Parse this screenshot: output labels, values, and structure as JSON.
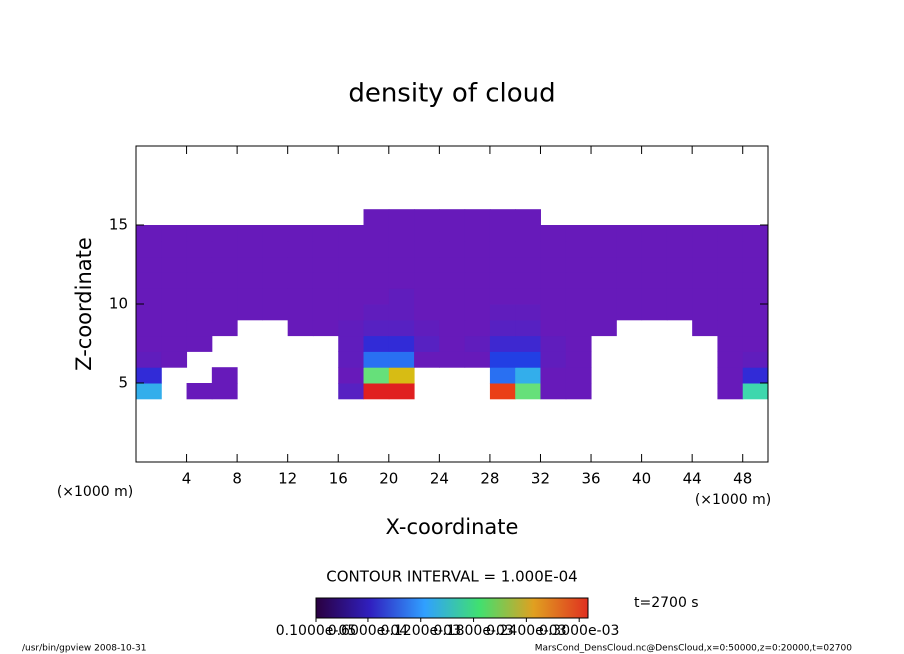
{
  "chart_data": {
    "type": "contour",
    "title": "density of cloud",
    "x_label": "X-coordinate",
    "y_label": "Z-coordinate",
    "x_unit": "(×1000 m)",
    "y_unit": "(×1000 m)",
    "xlim": [
      0,
      50
    ],
    "ylim": [
      0,
      20
    ],
    "xticks": [
      4,
      8,
      12,
      16,
      20,
      24,
      28,
      32,
      36,
      40,
      44,
      48
    ],
    "yticks": [
      5,
      10,
      15
    ],
    "values": [
      [
        null,
        null,
        null,
        null,
        null,
        null,
        null,
        null,
        null,
        null,
        null,
        null,
        null,
        null,
        null,
        null,
        null,
        null,
        null,
        null,
        null,
        null,
        null,
        null,
        null
      ],
      [
        null,
        null,
        null,
        null,
        null,
        null,
        null,
        null,
        null,
        null,
        null,
        null,
        null,
        null,
        null,
        null,
        null,
        null,
        null,
        null,
        null,
        null,
        null,
        null,
        null
      ],
      [
        null,
        null,
        null,
        null,
        null,
        null,
        null,
        null,
        null,
        null,
        null,
        null,
        null,
        null,
        null,
        null,
        null,
        null,
        null,
        null,
        null,
        null,
        null,
        null,
        null
      ],
      [
        null,
        null,
        null,
        null,
        null,
        null,
        null,
        null,
        null,
        null,
        null,
        null,
        null,
        null,
        null,
        null,
        null,
        null,
        null,
        null,
        null,
        null,
        null,
        null,
        null
      ],
      [
        0.00015,
        null,
        3e-05,
        3e-05,
        null,
        null,
        null,
        null,
        5e-05,
        0.00045,
        0.0004,
        null,
        null,
        null,
        0.0003,
        0.0002,
        3e-05,
        3e-05,
        null,
        null,
        null,
        null,
        null,
        3e-05,
        0.00018
      ],
      [
        8e-05,
        null,
        null,
        3e-05,
        null,
        null,
        null,
        null,
        3e-05,
        0.0002,
        0.00025,
        null,
        null,
        null,
        0.00012,
        0.00015,
        3e-05,
        3e-05,
        null,
        null,
        null,
        null,
        null,
        3e-05,
        8e-05
      ],
      [
        4e-05,
        3e-05,
        null,
        null,
        null,
        null,
        null,
        null,
        4e-05,
        0.00012,
        0.00012,
        3e-05,
        3e-05,
        3e-05,
        0.0001,
        0.0001,
        4e-05,
        3e-05,
        null,
        null,
        null,
        null,
        null,
        3e-05,
        4e-05
      ],
      [
        3e-05,
        3e-05,
        3e-05,
        null,
        null,
        null,
        null,
        null,
        4e-05,
        8e-05,
        8e-05,
        5e-05,
        3e-05,
        4e-05,
        7e-05,
        7e-05,
        4e-05,
        3e-05,
        null,
        null,
        null,
        null,
        null,
        3e-05,
        3e-05
      ],
      [
        3e-05,
        3e-05,
        3e-05,
        3e-05,
        null,
        null,
        3e-05,
        3e-05,
        4e-05,
        5e-05,
        5e-05,
        4e-05,
        3e-05,
        3e-05,
        5e-05,
        5e-05,
        3e-05,
        3e-05,
        3e-05,
        null,
        null,
        null,
        3e-05,
        3e-05,
        3e-05
      ],
      [
        3e-05,
        3e-05,
        3e-05,
        3e-05,
        3e-05,
        3e-05,
        3e-05,
        3e-05,
        3e-05,
        4e-05,
        4e-05,
        3e-05,
        3e-05,
        3e-05,
        4e-05,
        4e-05,
        3e-05,
        3e-05,
        3e-05,
        3e-05,
        3e-05,
        3e-05,
        3e-05,
        3e-05,
        3e-05
      ],
      [
        3e-05,
        3e-05,
        3e-05,
        3e-05,
        3e-05,
        3e-05,
        3e-05,
        3e-05,
        3e-05,
        3e-05,
        4e-05,
        3e-05,
        3e-05,
        3e-05,
        3e-05,
        3e-05,
        3e-05,
        3e-05,
        3e-05,
        3e-05,
        3e-05,
        3e-05,
        3e-05,
        3e-05,
        3e-05
      ],
      [
        3e-05,
        3e-05,
        3e-05,
        3e-05,
        3e-05,
        3e-05,
        3e-05,
        3e-05,
        3e-05,
        3e-05,
        3e-05,
        3e-05,
        3e-05,
        3e-05,
        3e-05,
        3e-05,
        3e-05,
        3e-05,
        3e-05,
        3e-05,
        3e-05,
        3e-05,
        3e-05,
        3e-05,
        3e-05
      ],
      [
        3e-05,
        3e-05,
        3e-05,
        3e-05,
        3e-05,
        3e-05,
        3e-05,
        3e-05,
        3e-05,
        3e-05,
        3e-05,
        3e-05,
        3e-05,
        3e-05,
        3e-05,
        3e-05,
        3e-05,
        3e-05,
        3e-05,
        3e-05,
        3e-05,
        3e-05,
        3e-05,
        3e-05,
        3e-05
      ],
      [
        3e-05,
        3e-05,
        3e-05,
        3e-05,
        3e-05,
        3e-05,
        3e-05,
        3e-05,
        3e-05,
        3e-05,
        3e-05,
        3e-05,
        3e-05,
        3e-05,
        3e-05,
        3e-05,
        3e-05,
        3e-05,
        3e-05,
        3e-05,
        3e-05,
        3e-05,
        3e-05,
        3e-05,
        3e-05
      ],
      [
        3e-05,
        3e-05,
        3e-05,
        3e-05,
        3e-05,
        3e-05,
        3e-05,
        3e-05,
        3e-05,
        3e-05,
        3e-05,
        3e-05,
        3e-05,
        3e-05,
        3e-05,
        3e-05,
        3e-05,
        3e-05,
        3e-05,
        3e-05,
        3e-05,
        3e-05,
        3e-05,
        3e-05,
        3e-05
      ],
      [
        null,
        null,
        null,
        null,
        null,
        null,
        null,
        null,
        null,
        3e-05,
        3e-05,
        3e-05,
        3e-05,
        3e-05,
        3e-05,
        3e-05,
        null,
        null,
        null,
        null,
        null,
        null,
        null,
        null,
        null
      ],
      [
        null,
        null,
        null,
        null,
        null,
        null,
        null,
        null,
        null,
        null,
        null,
        null,
        null,
        null,
        null,
        null,
        null,
        null,
        null,
        null,
        null,
        null,
        null,
        null,
        null
      ],
      [
        null,
        null,
        null,
        null,
        null,
        null,
        null,
        null,
        null,
        null,
        null,
        null,
        null,
        null,
        null,
        null,
        null,
        null,
        null,
        null,
        null,
        null,
        null,
        null,
        null
      ],
      [
        null,
        null,
        null,
        null,
        null,
        null,
        null,
        null,
        null,
        null,
        null,
        null,
        null,
        null,
        null,
        null,
        null,
        null,
        null,
        null,
        null,
        null,
        null,
        null,
        null
      ],
      [
        null,
        null,
        null,
        null,
        null,
        null,
        null,
        null,
        null,
        null,
        null,
        null,
        null,
        null,
        null,
        null,
        null,
        null,
        null,
        null,
        null,
        null,
        null,
        null,
        null
      ]
    ],
    "clim": [
      1e-06,
      0.00031
    ],
    "colorbar_ticks": [
      {
        "value": 1e-06,
        "label": "0.1000e-05"
      },
      {
        "value": 6e-05,
        "label": "0.6000e-04"
      },
      {
        "value": 0.00012,
        "label": "0.1200e-03"
      },
      {
        "value": 0.00018,
        "label": "0.1800e-03"
      },
      {
        "value": 0.00024,
        "label": "0.2400e-03"
      },
      {
        "value": 0.0003,
        "label": "0.3000e-03"
      }
    ],
    "contour_note": "CONTOUR INTERVAL = 1.000E-04",
    "time_note": "t=2700 s",
    "footer_left": "/usr/bin/gpview   2008-10-31",
    "footer_right": "MarsCond_DensCloud.nc@DensCloud,x=0:50000,z=0:20000,t=02700"
  }
}
